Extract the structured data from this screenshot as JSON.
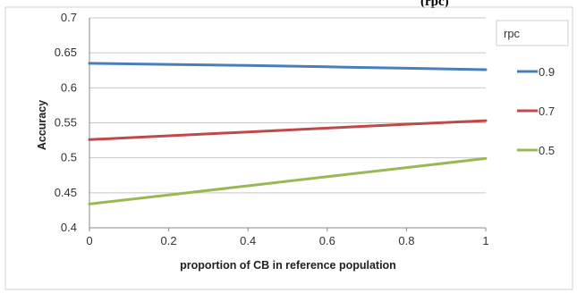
{
  "top_fragment": "(rpc)",
  "chart_data": {
    "type": "line",
    "title": "",
    "xlabel": "proportion  of CB in reference population",
    "ylabel": "Accuracy",
    "x": [
      0,
      0.2,
      0.4,
      0.6,
      0.8,
      1
    ],
    "xlim": [
      0,
      1
    ],
    "ylim": [
      0.4,
      0.7
    ],
    "x_ticks": [
      "0",
      "0.2",
      "0.4",
      "0.6",
      "0.8",
      "1"
    ],
    "y_ticks": [
      "0.4",
      "0.45",
      "0.5",
      "0.55",
      "0.6",
      "0.65",
      "0.7"
    ],
    "grid": "horizontal",
    "legend_title": "rpc",
    "legend_position": "right",
    "series": [
      {
        "name": "0.9",
        "color": "#4a7ebb",
        "values": [
          0.635,
          0.6335,
          0.632,
          0.63,
          0.628,
          0.626
        ]
      },
      {
        "name": "0.7",
        "color": "#be4b48",
        "values": [
          0.526,
          0.5315,
          0.537,
          0.5425,
          0.548,
          0.553
        ]
      },
      {
        "name": "0.5",
        "color": "#98b954",
        "values": [
          0.434,
          0.447,
          0.46,
          0.473,
          0.486,
          0.499
        ]
      }
    ]
  }
}
